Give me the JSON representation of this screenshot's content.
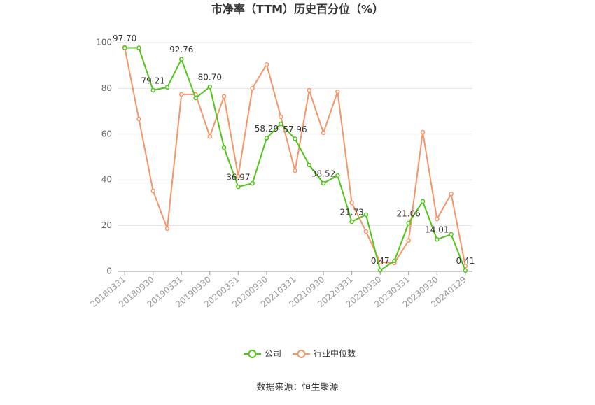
{
  "chart_data": {
    "type": "line",
    "title": "市净率（TTM）历史百分位（%）",
    "categories": [
      "20180331",
      null,
      "20180930",
      null,
      "20190331",
      null,
      "20190930",
      null,
      "20200331",
      null,
      "20200930",
      null,
      "20210331",
      null,
      "20210930",
      null,
      "20220331",
      null,
      "20220930",
      null,
      "20230331",
      null,
      "20230930",
      null,
      "20240129"
    ],
    "series": [
      {
        "name": "公司",
        "color": "#52c41a",
        "values": [
          97.7,
          97.7,
          79.21,
          80.5,
          92.76,
          75.8,
          80.7,
          54.1,
          36.97,
          38.5,
          58.29,
          64.5,
          57.96,
          46.5,
          38.52,
          41.9,
          21.73,
          24.8,
          0.47,
          4.6,
          21.06,
          30.6,
          14.01,
          16.2,
          0.41
        ],
        "value_labels": [
          "97.70",
          null,
          "79.21",
          null,
          "92.76",
          null,
          "80.70",
          null,
          "36.97",
          null,
          "58.29",
          null,
          "57.96",
          null,
          "38.52",
          null,
          "21.73",
          null,
          "0.47",
          null,
          "21.06",
          null,
          "14.01",
          null,
          "0.41"
        ]
      },
      {
        "name": "行业中位数",
        "color": "#f4956a",
        "values": [
          97.9,
          66.7,
          35.2,
          18.7,
          77.4,
          77.4,
          59.0,
          76.5,
          41.6,
          80.1,
          90.5,
          67.6,
          44.0,
          79.2,
          60.6,
          78.6,
          30.0,
          17.4,
          4.0,
          3.7,
          13.5,
          60.9,
          22.9,
          33.9,
          2.4
        ]
      }
    ],
    "ylim": [
      0,
      100
    ],
    "yticks": [
      0,
      20,
      40,
      60,
      80,
      100
    ],
    "grid": true,
    "source": "数据来源：恒生聚源"
  }
}
